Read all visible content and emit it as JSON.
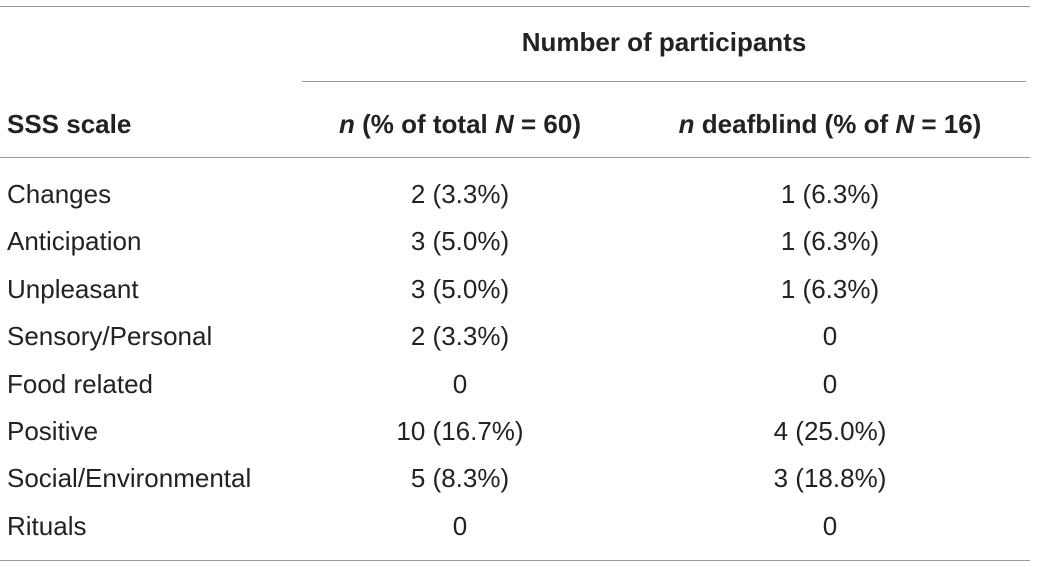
{
  "table": {
    "group_header": "Number of participants",
    "headers": {
      "scale": "SSS scale",
      "total": {
        "n_italic": "n",
        "text_before": " (% of total ",
        "N_italic": "N",
        "text_after": " = 60)"
      },
      "deafblind": {
        "n_italic": "n",
        "text_before": " deafblind (% of ",
        "N_italic": "N",
        "text_after": " = 16)"
      }
    },
    "rows": [
      {
        "scale": "Changes",
        "total": "2 (3.3%)",
        "deafblind": "1 (6.3%)"
      },
      {
        "scale": "Anticipation",
        "total": "3 (5.0%)",
        "deafblind": "1 (6.3%)"
      },
      {
        "scale": "Unpleasant",
        "total": "3 (5.0%)",
        "deafblind": "1 (6.3%)"
      },
      {
        "scale": "Sensory/Personal",
        "total": "2 (3.3%)",
        "deafblind": "0"
      },
      {
        "scale": "Food related",
        "total": "0",
        "deafblind": "0"
      },
      {
        "scale": "Positive",
        "total": "10 (16.7%)",
        "deafblind": "4 (25.0%)"
      },
      {
        "scale": "Social/Environmental",
        "total": "5 (8.3%)",
        "deafblind": "3 (18.8%)"
      },
      {
        "scale": "Rituals",
        "total": "0",
        "deafblind": "0"
      }
    ]
  }
}
